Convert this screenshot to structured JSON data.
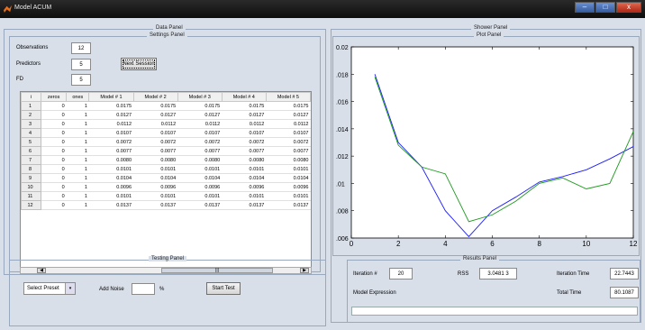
{
  "window": {
    "title": "Model ACUM",
    "minimize": "–",
    "maximize": "□",
    "close": "x"
  },
  "data_panel": {
    "title": "Data Panel",
    "settings_panel": {
      "title": "Settings Panel",
      "observations_label": "Observations",
      "observations_value": "12",
      "predictors_label": "Predictors",
      "predictors_value": "5",
      "fd_label": "FD",
      "fd_value": "5",
      "next_button": "Next Session"
    },
    "table": {
      "columns": [
        "i",
        "zeros",
        "ones",
        "Model # 1",
        "Model # 2",
        "Model # 3",
        "Model # 4",
        "Model # 5"
      ],
      "rows": [
        [
          "1",
          "0",
          "1",
          "0.0175",
          "0.0175",
          "0.0175",
          "0.0175",
          "0.0175"
        ],
        [
          "2",
          "0",
          "1",
          "0.0127",
          "0.0127",
          "0.0127",
          "0.0127",
          "0.0127"
        ],
        [
          "3",
          "0",
          "1",
          "0.0112",
          "0.0112",
          "0.0112",
          "0.0112",
          "0.0112"
        ],
        [
          "4",
          "0",
          "1",
          "0.0107",
          "0.0107",
          "0.0107",
          "0.0107",
          "0.0107"
        ],
        [
          "5",
          "0",
          "1",
          "0.0072",
          "0.0072",
          "0.0072",
          "0.0072",
          "0.0072"
        ],
        [
          "6",
          "0",
          "1",
          "0.0077",
          "0.0077",
          "0.0077",
          "0.0077",
          "0.0077"
        ],
        [
          "7",
          "0",
          "1",
          "0.0080",
          "0.0080",
          "0.0080",
          "0.0080",
          "0.0080"
        ],
        [
          "8",
          "0",
          "1",
          "0.0101",
          "0.0101",
          "0.0101",
          "0.0101",
          "0.0101"
        ],
        [
          "9",
          "0",
          "1",
          "0.0104",
          "0.0104",
          "0.0104",
          "0.0104",
          "0.0104"
        ],
        [
          "10",
          "0",
          "1",
          "0.0096",
          "0.0096",
          "0.0096",
          "0.0096",
          "0.0096"
        ],
        [
          "11",
          "0",
          "1",
          "0.0101",
          "0.0101",
          "0.0101",
          "0.0101",
          "0.0101"
        ],
        [
          "12",
          "0",
          "1",
          "0.0137",
          "0.0137",
          "0.0137",
          "0.0137",
          "0.0137"
        ]
      ],
      "scroll_left": "◀",
      "scroll_right": "▶",
      "scroll_thumb": "|||"
    }
  },
  "testing_panel": {
    "title": "Testing Panel",
    "select_preset": "Select Preset",
    "add_noise_label": "Add Noise",
    "add_noise_value": "",
    "percent": "%",
    "start_button": "Start Test"
  },
  "shower_panel": {
    "title": "Shower Panel",
    "plot_panel_title": "Plot Panel"
  },
  "results_panel": {
    "title": "Results Panel",
    "iteration_label": "Iteration #",
    "iteration_value": "20",
    "rss_label": "RSS",
    "rss_value": "3.0481 3",
    "iteration_time_label": "Iteration Time",
    "iteration_time_value": "22.7443",
    "model_expression_label": "Model Expression",
    "total_time_label": "Total Time",
    "total_time_value": "80.1087",
    "progress": 0
  },
  "chart_data": {
    "type": "line",
    "xlim": [
      0,
      12
    ],
    "ylim": [
      0.006,
      0.02
    ],
    "x_ticks": [
      "0",
      "2",
      "4",
      "6",
      "8",
      "10",
      "12"
    ],
    "y_ticks": [
      ".006",
      ".008",
      ".01",
      ".012",
      ".014",
      ".016",
      ".018",
      "0.02"
    ],
    "x": [
      1,
      2,
      3,
      4,
      5,
      6,
      7,
      8,
      9,
      10,
      11,
      12
    ],
    "series": [
      {
        "color": "#1c1cff",
        "values": [
          0.018,
          0.013,
          0.0112,
          0.008,
          0.0061,
          0.008,
          0.009,
          0.0101,
          0.0105,
          0.011,
          0.0118,
          0.0127
        ]
      },
      {
        "color": "#1a9a1a",
        "values": [
          0.0178,
          0.0128,
          0.0112,
          0.0107,
          0.0072,
          0.0077,
          0.0087,
          0.01,
          0.0104,
          0.0096,
          0.01,
          0.0138
        ]
      }
    ],
    "grid": false
  }
}
